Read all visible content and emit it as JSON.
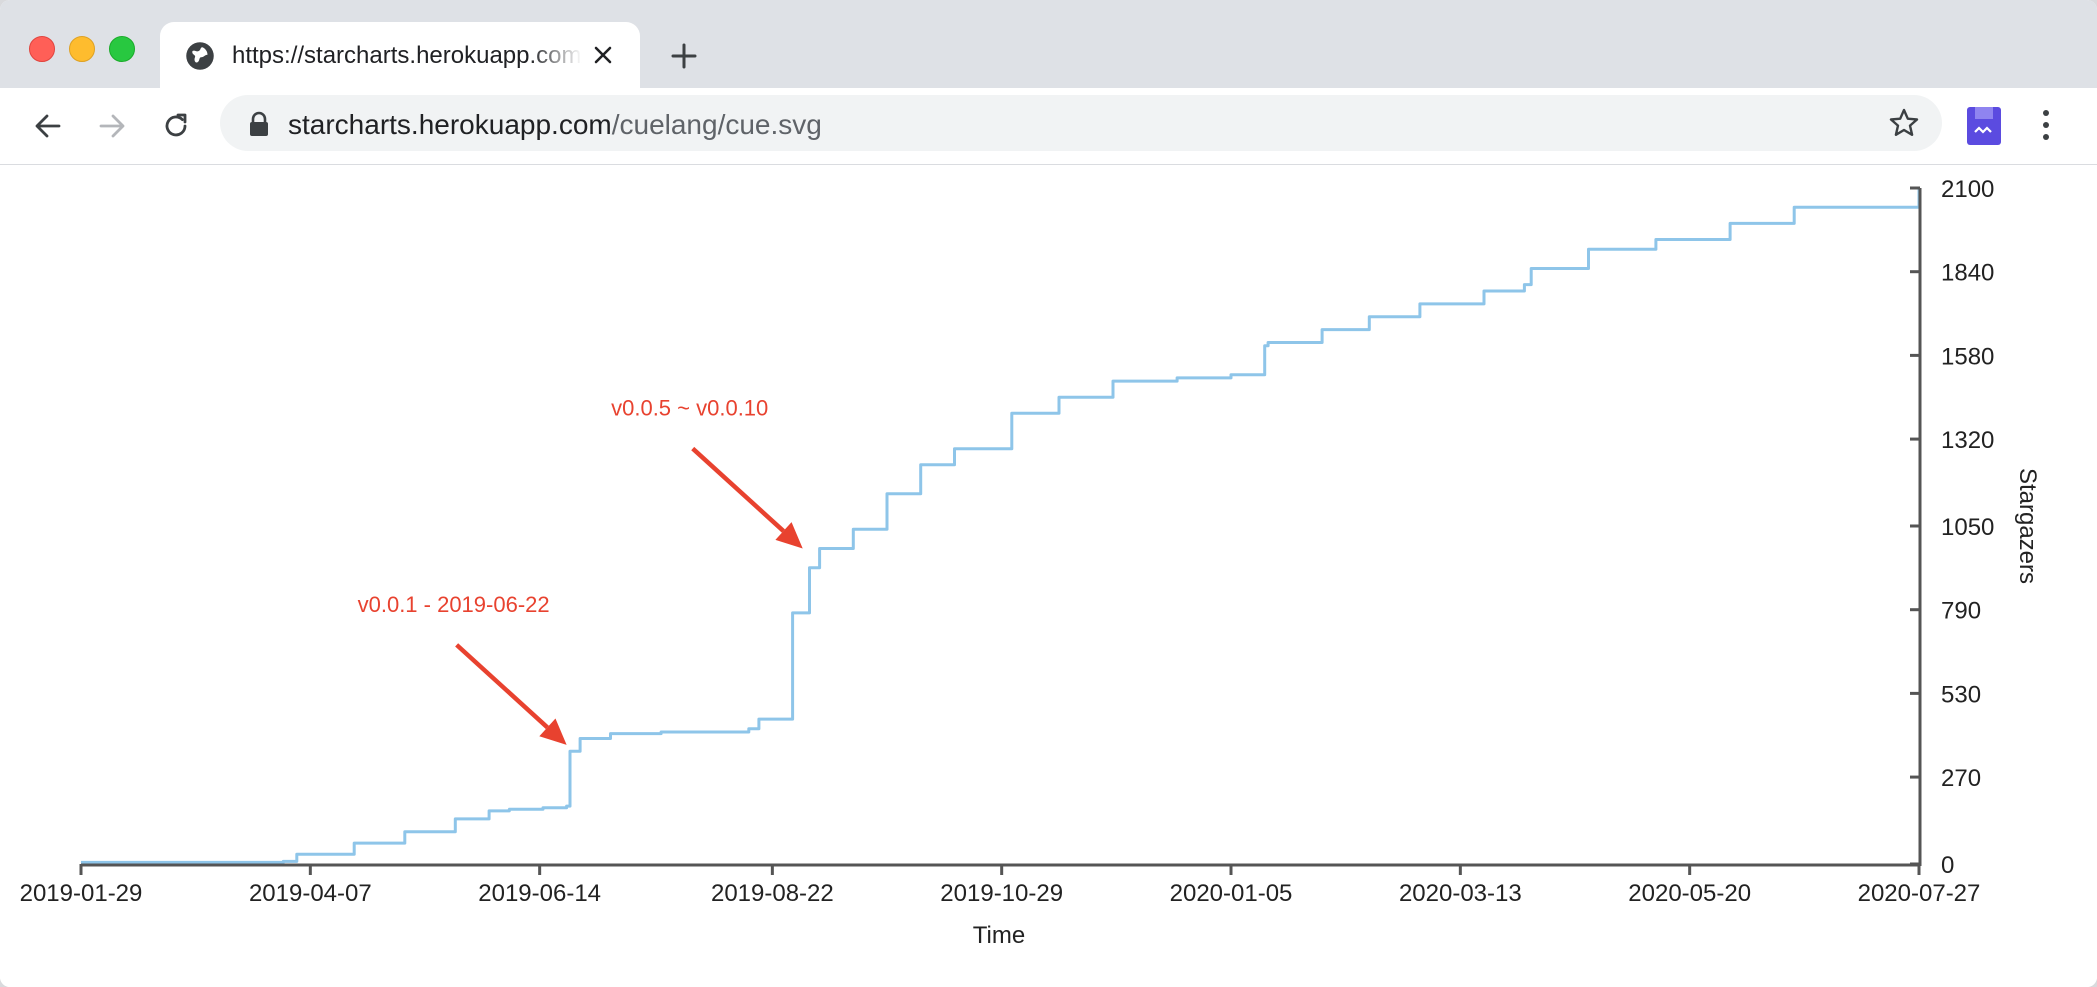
{
  "browser": {
    "tab_title": "https://starcharts.herokuapp.com/cuelang/cue.svg",
    "url_host": "starcharts.herokuapp.com",
    "url_path": "/cuelang/cue.svg"
  },
  "colors": {
    "line": "#8ec5e9",
    "annotation": "#e8422f",
    "axis": "#555555"
  },
  "chart_data": {
    "type": "line",
    "title": "",
    "xlabel": "Time",
    "ylabel": "Stargazers",
    "y_axis_position": "right",
    "xlim": [
      "2019-01-29",
      "2020-07-27"
    ],
    "ylim": [
      0,
      2100
    ],
    "x_ticks": [
      "2019-01-29",
      "2019-04-07",
      "2019-06-14",
      "2019-08-22",
      "2019-10-29",
      "2020-01-05",
      "2020-03-13",
      "2020-05-20",
      "2020-07-27"
    ],
    "y_ticks": [
      0,
      270,
      530,
      790,
      1050,
      1320,
      1580,
      1840,
      2100
    ],
    "series": [
      {
        "x": [
          "2019-01-29",
          "2019-03-30",
          "2019-04-03",
          "2019-04-20",
          "2019-05-05",
          "2019-05-20",
          "2019-05-30",
          "2019-06-05",
          "2019-06-15",
          "2019-06-22",
          "2019-06-23",
          "2019-06-26",
          "2019-07-05",
          "2019-07-20",
          "2019-08-15",
          "2019-08-18",
          "2019-08-26",
          "2019-08-28",
          "2019-09-02",
          "2019-09-05",
          "2019-09-15",
          "2019-09-25",
          "2019-10-05",
          "2019-10-15",
          "2019-11-01",
          "2019-11-15",
          "2019-12-01",
          "2019-12-20",
          "2020-01-05",
          "2020-01-15",
          "2020-01-16",
          "2020-02-01",
          "2020-02-15",
          "2020-03-01",
          "2020-03-20",
          "2020-04-01",
          "2020-04-03",
          "2020-04-20",
          "2020-05-10",
          "2020-06-01",
          "2020-06-20",
          "2020-07-27"
        ],
        "y": [
          5,
          8,
          30,
          65,
          100,
          140,
          165,
          170,
          175,
          180,
          350,
          390,
          405,
          410,
          420,
          450,
          450,
          780,
          920,
          980,
          1040,
          1150,
          1240,
          1290,
          1400,
          1450,
          1500,
          1510,
          1520,
          1610,
          1620,
          1660,
          1700,
          1740,
          1780,
          1800,
          1850,
          1910,
          1940,
          1990,
          2040,
          2100
        ]
      }
    ],
    "annotations": [
      {
        "text": "v0.0.1 - 2019-06-22",
        "x": "2019-06-22",
        "y": 370
      },
      {
        "text": "v0.0.5 ~ v0.0.10",
        "x": "2019-08-31",
        "y": 980
      }
    ],
    "grid": false
  }
}
